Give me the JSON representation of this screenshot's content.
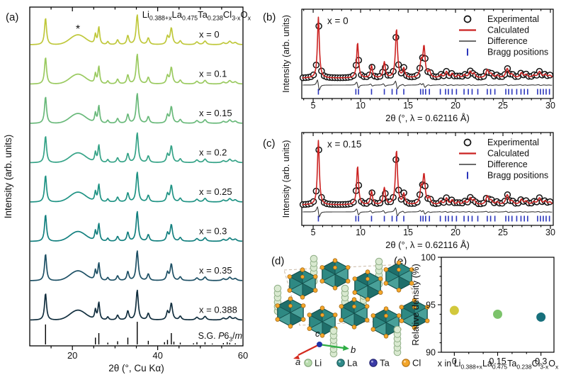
{
  "panel_labels": {
    "a": "(a)",
    "b": "(b)",
    "c": "(c)",
    "d": "(d)",
    "e": "(e)"
  },
  "chart_data": [
    {
      "id": "a",
      "type": "line",
      "variant": "xrd-stack",
      "title_formula": [
        {
          "t": "Li"
        },
        {
          "s": "0.388+x"
        },
        {
          "t": "La"
        },
        {
          "s": "0.475"
        },
        {
          "t": "Ta"
        },
        {
          "s": "0.238"
        },
        {
          "t": "Cl"
        },
        {
          "s": "3-x"
        },
        {
          "t": "O"
        },
        {
          "s": "x"
        }
      ],
      "xlabel": "2θ (°, Cu Kα)",
      "ylabel": "Intensity (arb. units)",
      "xlim": [
        10,
        60
      ],
      "xticks": [
        20,
        40,
        60
      ],
      "xtick_labels": [
        "20",
        "40",
        "60"
      ],
      "xminor_step": 5,
      "star_annotation": {
        "text": "*",
        "x": 21.3
      },
      "series": [
        {
          "label": "x = 0",
          "color": "#bfc83b"
        },
        {
          "label": "x = 0.1",
          "color": "#9aca60"
        },
        {
          "label": "x = 0.15",
          "color": "#69b97a"
        },
        {
          "label": "x = 0.2",
          "color": "#35a387"
        },
        {
          "label": "x = 0.25",
          "color": "#1f9384"
        },
        {
          "label": "x = 0.3",
          "color": "#13807f"
        },
        {
          "label": "x = 0.35",
          "color": "#1d5065"
        },
        {
          "label": "x = 0.388",
          "color": "#112e3e"
        }
      ],
      "peaks": [
        [
          13.7,
          0.9,
          0.28
        ],
        [
          25.4,
          0.32,
          0.22
        ],
        [
          26.2,
          0.58,
          0.24
        ],
        [
          28.3,
          0.1,
          0.25
        ],
        [
          30.6,
          0.16,
          0.28
        ],
        [
          33.0,
          0.3,
          0.28
        ],
        [
          35.2,
          1.0,
          0.3
        ],
        [
          37.8,
          0.22,
          0.3
        ],
        [
          42.3,
          0.26,
          0.28
        ],
        [
          43.2,
          0.55,
          0.32
        ],
        [
          45.3,
          0.12,
          0.32
        ],
        [
          49.2,
          0.09,
          0.38
        ],
        [
          51.1,
          0.12,
          0.38
        ],
        [
          55.4,
          0.06,
          0.4
        ],
        [
          56.9,
          0.11,
          0.42
        ],
        [
          58.2,
          0.07,
          0.42
        ]
      ],
      "amorphous_hump": [
        21.3,
        0.33,
        2.6
      ],
      "reference": {
        "label_formula": [
          {
            "t": "S.G. "
          },
          {
            "t": "P",
            "i": true
          },
          {
            "t": "6"
          },
          {
            "s": "3"
          },
          {
            "t": "/"
          },
          {
            "t": "m",
            "i": true
          }
        ],
        "color": "#000000",
        "sticks": [
          [
            13.7,
            0.88
          ],
          [
            25.4,
            0.3
          ],
          [
            26.2,
            0.5
          ],
          [
            28.3,
            0.08
          ],
          [
            30.6,
            0.14
          ],
          [
            33.0,
            0.3
          ],
          [
            35.2,
            1.0
          ],
          [
            37.8,
            0.16
          ],
          [
            41.6,
            0.1
          ],
          [
            42.3,
            0.2
          ],
          [
            43.2,
            0.5
          ],
          [
            43.8,
            0.12
          ],
          [
            45.3,
            0.08
          ],
          [
            48.4,
            0.05
          ],
          [
            49.2,
            0.1
          ],
          [
            51.1,
            0.1
          ],
          [
            52.8,
            0.04
          ],
          [
            55.4,
            0.06
          ],
          [
            56.3,
            0.1
          ],
          [
            56.9,
            0.07
          ],
          [
            58.2,
            0.05
          ]
        ]
      }
    },
    {
      "id": "b",
      "type": "line",
      "variant": "rietveld",
      "annotation": "x = 0",
      "xlabel": "2θ (°, λ = 0.62116 Å)",
      "ylabel": "Intensity (arb. units)",
      "xlim": [
        3.8,
        30.3
      ],
      "xticks": [
        5,
        10,
        15,
        20,
        25,
        30
      ],
      "xtick_labels": [
        "5",
        "10",
        "15",
        "20",
        "25",
        "30"
      ],
      "xminor_step": 1,
      "legend": [
        {
          "label": "Experimental",
          "marker": "circle",
          "color": "#111111"
        },
        {
          "label": "Calculated",
          "marker": "line",
          "color": "#cb2221"
        },
        {
          "label": "Difference",
          "marker": "line",
          "color": "#3a3a3a"
        },
        {
          "label": "Bragg positions",
          "marker": "tick",
          "color": "#2a35bb"
        }
      ],
      "peaks": [
        [
          5.55,
          1.0,
          0.12
        ],
        [
          9.68,
          0.58,
          0.12
        ],
        [
          11.15,
          0.2,
          0.12
        ],
        [
          12.5,
          0.26,
          0.13
        ],
        [
          13.78,
          0.8,
          0.13
        ],
        [
          14.55,
          0.15,
          0.13
        ],
        [
          16.38,
          0.24,
          0.13
        ],
        [
          16.68,
          0.5,
          0.14
        ],
        [
          17.25,
          0.1,
          0.14
        ],
        [
          18.45,
          0.05,
          0.15
        ],
        [
          19.05,
          0.1,
          0.15
        ],
        [
          19.65,
          0.07,
          0.15
        ],
        [
          20.3,
          0.04,
          0.15
        ],
        [
          20.95,
          0.05,
          0.16
        ],
        [
          21.55,
          0.1,
          0.16
        ],
        [
          21.95,
          0.07,
          0.16
        ],
        [
          23.35,
          0.13,
          0.17
        ],
        [
          23.75,
          0.06,
          0.17
        ],
        [
          24.4,
          0.04,
          0.17
        ],
        [
          25.45,
          0.15,
          0.18
        ],
        [
          25.95,
          0.05,
          0.18
        ],
        [
          26.95,
          0.08,
          0.18
        ],
        [
          27.45,
          0.05,
          0.18
        ],
        [
          28.25,
          0.04,
          0.19
        ],
        [
          28.85,
          0.1,
          0.19
        ],
        [
          29.45,
          0.05,
          0.19
        ],
        [
          29.95,
          0.04,
          0.19
        ]
      ],
      "bragg_positions": [
        5.55,
        9.5,
        9.78,
        11.15,
        12.5,
        13.32,
        13.8,
        14.55,
        16.32,
        16.58,
        16.85,
        17.25,
        18.4,
        18.95,
        19.25,
        19.65,
        20.1,
        20.9,
        21.35,
        21.75,
        22.35,
        23.35,
        23.7,
        24.15,
        25.3,
        25.6,
        25.95,
        26.45,
        26.9,
        27.25,
        27.6,
        28.65,
        28.95,
        29.25,
        29.55,
        29.9
      ]
    },
    {
      "id": "c",
      "type": "line",
      "variant": "rietveld",
      "annotation": "x = 0.15",
      "xlabel": "2θ (°, λ = 0.62116 Å)",
      "ylabel": "Intensity (arb. units)",
      "xlim": [
        3.8,
        30.3
      ],
      "xticks": [
        5,
        10,
        15,
        20,
        25,
        30
      ],
      "xtick_labels": [
        "5",
        "10",
        "15",
        "20",
        "25",
        "30"
      ],
      "xminor_step": 1,
      "legend": [
        {
          "label": "Experimental",
          "marker": "circle",
          "color": "#111111"
        },
        {
          "label": "Calculated",
          "marker": "line",
          "color": "#cb2221"
        },
        {
          "label": "Difference",
          "marker": "line",
          "color": "#3a3a3a"
        },
        {
          "label": "Bragg positions",
          "marker": "tick",
          "color": "#2a35bb"
        }
      ],
      "peaks": [
        [
          5.55,
          1.0,
          0.12
        ],
        [
          9.68,
          0.6,
          0.12
        ],
        [
          11.15,
          0.21,
          0.12
        ],
        [
          12.5,
          0.26,
          0.13
        ],
        [
          13.78,
          0.84,
          0.13
        ],
        [
          14.55,
          0.16,
          0.13
        ],
        [
          16.38,
          0.24,
          0.13
        ],
        [
          16.68,
          0.45,
          0.14
        ],
        [
          17.25,
          0.1,
          0.14
        ],
        [
          18.45,
          0.05,
          0.15
        ],
        [
          19.05,
          0.1,
          0.15
        ],
        [
          19.65,
          0.07,
          0.15
        ],
        [
          20.3,
          0.04,
          0.15
        ],
        [
          20.95,
          0.05,
          0.16
        ],
        [
          21.55,
          0.1,
          0.16
        ],
        [
          21.95,
          0.07,
          0.16
        ],
        [
          23.35,
          0.13,
          0.17
        ],
        [
          23.75,
          0.06,
          0.17
        ],
        [
          24.4,
          0.04,
          0.17
        ],
        [
          25.45,
          0.15,
          0.18
        ],
        [
          25.95,
          0.05,
          0.18
        ],
        [
          26.95,
          0.08,
          0.18
        ],
        [
          27.45,
          0.05,
          0.18
        ],
        [
          28.25,
          0.04,
          0.19
        ],
        [
          28.85,
          0.1,
          0.19
        ],
        [
          29.45,
          0.05,
          0.19
        ],
        [
          29.95,
          0.04,
          0.19
        ]
      ],
      "bragg_positions": [
        5.55,
        9.5,
        9.78,
        11.15,
        12.5,
        13.32,
        13.8,
        14.55,
        16.32,
        16.58,
        16.85,
        17.25,
        18.4,
        18.95,
        19.25,
        19.65,
        20.1,
        20.9,
        21.35,
        21.75,
        22.35,
        23.35,
        23.7,
        24.15,
        25.3,
        25.6,
        25.95,
        26.45,
        26.9,
        27.25,
        27.6,
        28.65,
        28.95,
        29.25,
        29.55,
        29.9
      ]
    },
    {
      "id": "e",
      "type": "scatter",
      "ylabel": "Relative density (%)",
      "xlabel_formula": [
        {
          "t": "x in Li"
        },
        {
          "s": "0.388+x"
        },
        {
          "t": "La"
        },
        {
          "s": "0.475"
        },
        {
          "t": "Ta"
        },
        {
          "s": "0.238"
        },
        {
          "t": "Cl"
        },
        {
          "s": "3-x"
        },
        {
          "t": "O"
        },
        {
          "s": "x"
        }
      ],
      "x": [
        0,
        0.15,
        0.3
      ],
      "y": [
        94.4,
        94.0,
        93.7
      ],
      "point_colors": [
        "#d2c83c",
        "#7cc36b",
        "#17707c"
      ],
      "xlim": [
        -0.045,
        0.345
      ],
      "ylim": [
        90,
        100
      ],
      "xticks": [
        0,
        0.15,
        0.3
      ],
      "xtick_labels": [
        "0",
        "0.15",
        "0.3"
      ],
      "yticks": [
        90,
        95,
        100
      ],
      "ytick_labels": [
        "90",
        "95",
        "100"
      ],
      "xminor_step": 0.05,
      "yminor_step": 1
    }
  ],
  "panel_d": {
    "atom_legend": [
      {
        "name": "Li",
        "color": "#b9dcae",
        "edge": "#7fa276"
      },
      {
        "name": "La",
        "color": "#2f8a89",
        "edge": "#1c5a59"
      },
      {
        "name": "Ta",
        "color": "#3b3ba8",
        "edge": "#23246e"
      },
      {
        "name": "Cl",
        "color": "#f4a62a",
        "edge": "#b06f12"
      }
    ],
    "axis_labels": [
      {
        "name": "a",
        "color": "#d42a1e"
      },
      {
        "name": "b",
        "color": "#2fae45"
      },
      {
        "name": "c",
        "color": "#2035a8"
      }
    ],
    "structure": {
      "polyhedron_fill": "#2e8983",
      "polyhedron_light": "#49a099",
      "polyhedron_dark": "#1f6f6b",
      "polyhedron_edge": "#14504d",
      "cl_color": "#f4a62a",
      "li_bead_fill": "#d9e9d0",
      "li_bead_edge": "#8fae86",
      "cell_edge": "#c9b9a6"
    }
  }
}
